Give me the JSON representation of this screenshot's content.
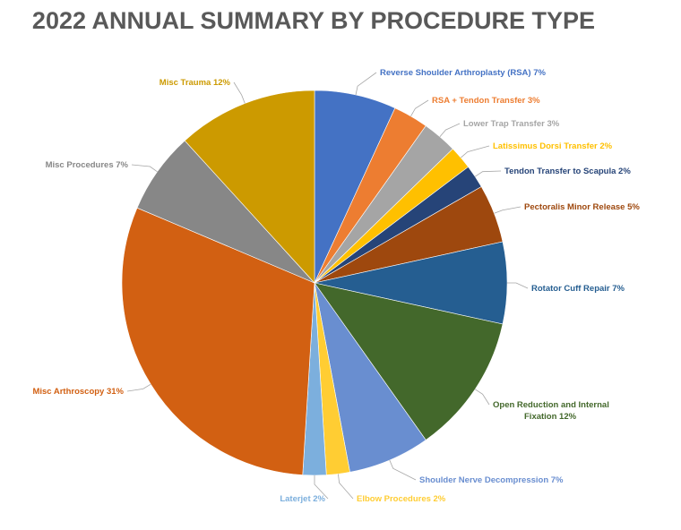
{
  "title": "2022 ANNUAL SUMMARY BY PROCEDURE TYPE",
  "chart_data": {
    "type": "pie",
    "title": "2022 ANNUAL SUMMARY BY PROCEDURE TYPE",
    "slices": [
      {
        "label": "Reverse Shoulder Arthroplasty (RSA)",
        "value": 7,
        "display": "Reverse Shoulder Arthroplasty (RSA) 7%",
        "color": "#4472C4"
      },
      {
        "label": "RSA + Tendon Transfer",
        "value": 3,
        "display": "RSA + Tendon Transfer 3%",
        "color": "#ED7D31"
      },
      {
        "label": "Lower Trap Transfer",
        "value": 3,
        "display": "Lower Trap Transfer 3%",
        "color": "#A5A5A5"
      },
      {
        "label": "Latissimus Dorsi Transfer",
        "value": 2,
        "display": "Latissimus Dorsi Transfer 2%",
        "color": "#FFC000"
      },
      {
        "label": "Tendon Transfer to Scapula",
        "value": 2,
        "display": "Tendon Transfer to Scapula 2%",
        "color": "#264478"
      },
      {
        "label": "Pectoralis Minor Release",
        "value": 5,
        "display": "Pectoralis Minor Release 5%",
        "color": "#9E480E"
      },
      {
        "label": "Rotator Cuff Repair",
        "value": 7,
        "display": "Rotator Cuff Repair 7%",
        "color": "#255E91"
      },
      {
        "label": "Open Reduction and Internal Fixation",
        "value": 12,
        "display": "Open Reduction and Internal Fixation 12%",
        "color": "#43682B"
      },
      {
        "label": "Shoulder Nerve Decompression",
        "value": 7,
        "display": "Shoulder Nerve Decompression 7%",
        "color": "#698ED0"
      },
      {
        "label": "Elbow Procedures",
        "value": 2,
        "display": "Elbow Procedures 2%",
        "color": "#FFCD33"
      },
      {
        "label": "Laterjet",
        "value": 2,
        "display": "Laterjet 2%",
        "color": "#7CAFDD"
      },
      {
        "label": "Misc Arthroscopy",
        "value": 31,
        "display": "Misc Arthroscopy 31%",
        "color": "#D26012"
      },
      {
        "label": "Misc Procedures",
        "value": 7,
        "display": "Misc Procedures 7%",
        "color": "#878787"
      },
      {
        "label": "Misc Trauma",
        "value": 12,
        "display": "Misc Trauma 12%",
        "color": "#CC9A00"
      }
    ],
    "legend": "none"
  }
}
